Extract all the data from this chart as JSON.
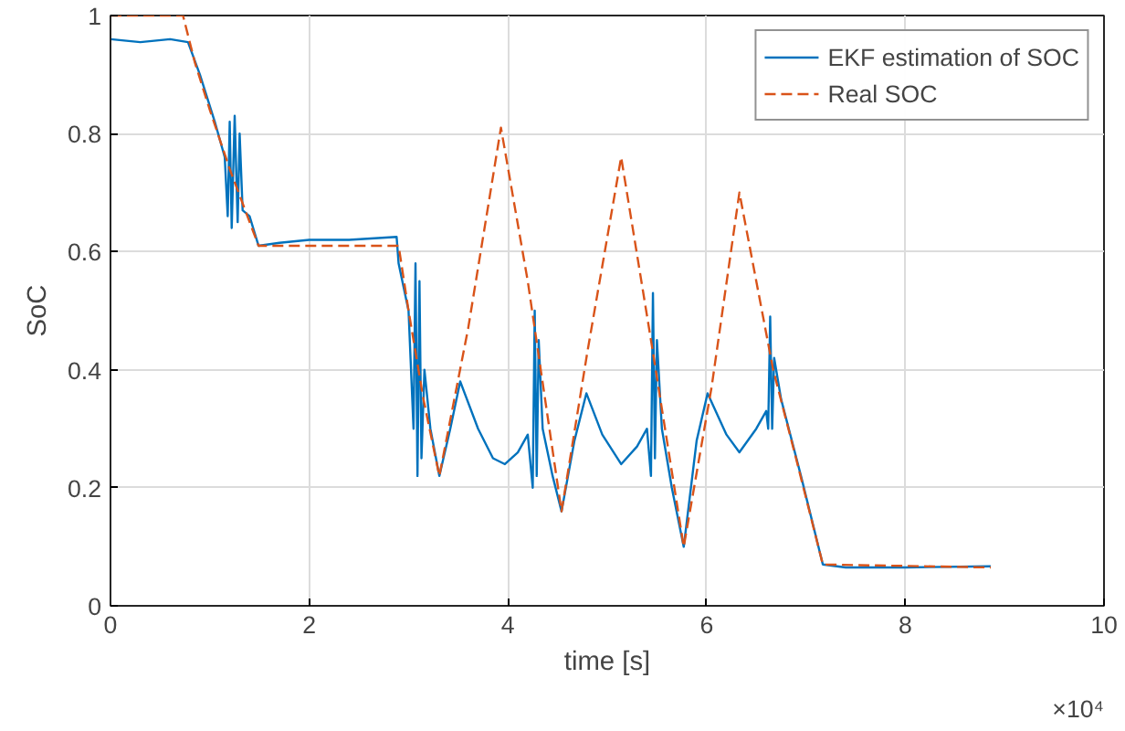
{
  "chart_data": {
    "type": "line",
    "xlabel": "time [s]",
    "ylabel": "SoC",
    "xlim": [
      0,
      10
    ],
    "ylim": [
      0,
      1
    ],
    "xticks": [
      0,
      2,
      4,
      6,
      8,
      10
    ],
    "yticks": [
      0,
      0.2,
      0.4,
      0.6,
      0.8,
      1
    ],
    "grid": true,
    "legend": "top right",
    "annotations": [
      "×10⁴"
    ],
    "series": [
      {
        "name": "EKF estimation of SOC",
        "color": "#0072bd",
        "line_style": "solid",
        "x": [
          0,
          0.3,
          0.6,
          0.78,
          0.9,
          1.05,
          1.15,
          1.18,
          1.2,
          1.22,
          1.25,
          1.28,
          1.3,
          1.33,
          1.4,
          1.49,
          1.7,
          2.0,
          2.4,
          2.88,
          2.9,
          3.0,
          3.05,
          3.07,
          3.09,
          3.11,
          3.13,
          3.16,
          3.22,
          3.31,
          3.42,
          3.52,
          3.7,
          3.85,
          3.97,
          4.1,
          4.2,
          4.25,
          4.27,
          4.29,
          4.31,
          4.35,
          4.45,
          4.54,
          4.67,
          4.79,
          4.95,
          5.14,
          5.3,
          5.4,
          5.44,
          5.46,
          5.48,
          5.5,
          5.55,
          5.65,
          5.77,
          5.9,
          6.01,
          6.2,
          6.33,
          6.5,
          6.6,
          6.62,
          6.64,
          6.66,
          6.68,
          6.75,
          6.95,
          7.17,
          7.4,
          8.0,
          8.86
        ],
        "values": [
          0.96,
          0.955,
          0.96,
          0.955,
          0.9,
          0.82,
          0.76,
          0.66,
          0.82,
          0.64,
          0.83,
          0.65,
          0.8,
          0.67,
          0.66,
          0.61,
          0.615,
          0.62,
          0.62,
          0.625,
          0.58,
          0.5,
          0.3,
          0.58,
          0.22,
          0.55,
          0.25,
          0.4,
          0.3,
          0.22,
          0.3,
          0.38,
          0.3,
          0.25,
          0.24,
          0.26,
          0.29,
          0.2,
          0.5,
          0.22,
          0.45,
          0.3,
          0.22,
          0.16,
          0.28,
          0.36,
          0.29,
          0.24,
          0.27,
          0.3,
          0.22,
          0.53,
          0.25,
          0.45,
          0.3,
          0.2,
          0.1,
          0.28,
          0.36,
          0.29,
          0.26,
          0.3,
          0.33,
          0.3,
          0.49,
          0.3,
          0.42,
          0.35,
          0.22,
          0.07,
          0.065,
          0.065,
          0.067
        ]
      },
      {
        "name": "Real SOC",
        "color": "#d95319",
        "line_style": "dashed",
        "x": [
          0,
          0.73,
          0.85,
          1.0,
          1.2,
          1.49,
          2.9,
          3.0,
          3.15,
          3.31,
          3.6,
          3.93,
          4.2,
          4.54,
          4.8,
          5.14,
          5.45,
          5.77,
          6.05,
          6.33,
          6.67,
          6.9,
          7.17,
          8.86
        ],
        "values": [
          1.0,
          1.0,
          0.92,
          0.84,
          0.74,
          0.61,
          0.61,
          0.5,
          0.35,
          0.22,
          0.47,
          0.81,
          0.55,
          0.16,
          0.43,
          0.76,
          0.44,
          0.1,
          0.37,
          0.7,
          0.4,
          0.25,
          0.07,
          0.065
        ]
      }
    ]
  }
}
